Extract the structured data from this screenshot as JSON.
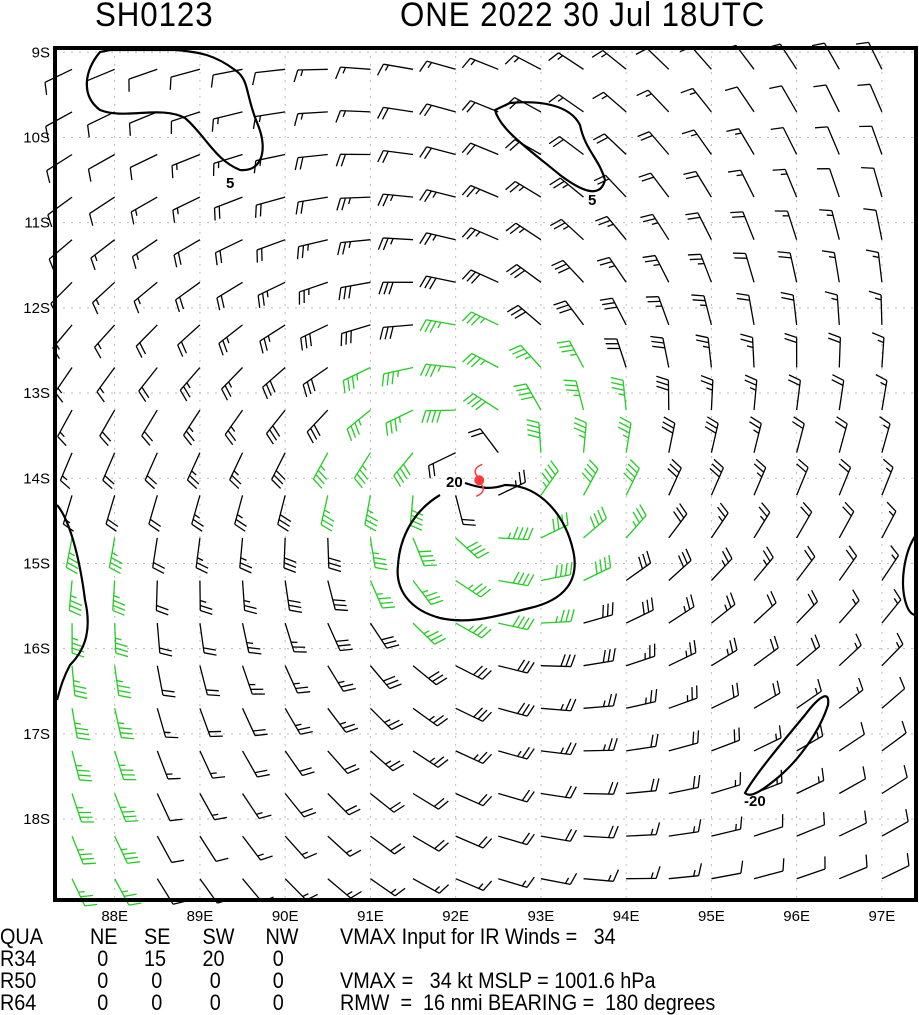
{
  "header": {
    "storm_id": "SH0123",
    "storm_info": "ONE 2022 30 Jul 18UTC"
  },
  "map": {
    "lon_range": [
      87.3,
      97.4
    ],
    "lat_range": [
      -8.95,
      -18.95
    ],
    "lon_labels": [
      "88E",
      "89E",
      "90E",
      "91E",
      "92E",
      "93E",
      "94E",
      "95E",
      "96E",
      "97E"
    ],
    "lat_labels": [
      "9S",
      "10S",
      "11S",
      "12S",
      "13S",
      "14S",
      "15S",
      "16S",
      "17S",
      "18S"
    ],
    "storm_center": {
      "lon": 92.3,
      "lat": -14.0
    },
    "storm_symbol_color": "#ff3b3b",
    "barb_color": "#000000",
    "gale_barb_color": "#22cc22",
    "contour_labels": [
      "5",
      "5",
      "20",
      "-20"
    ]
  },
  "table": {
    "header": [
      "QUA",
      "NE",
      "SE",
      "SW",
      "NW"
    ],
    "rows": [
      {
        "label": "R34",
        "values": [
          "0",
          "15",
          "20",
          "0"
        ]
      },
      {
        "label": "R50",
        "values": [
          "0",
          "0",
          "0",
          "0"
        ]
      },
      {
        "label": "R64",
        "values": [
          "0",
          "0",
          "0",
          "0"
        ]
      }
    ],
    "vmax_input": "VMAX Input for IR Winds =   34",
    "vmax_mslp": "VMAX =   34 kt MSLP = 1001.6 hPa",
    "rmw_bearing": "RMW  =  16 nmi BEARING =  180 degrees"
  }
}
